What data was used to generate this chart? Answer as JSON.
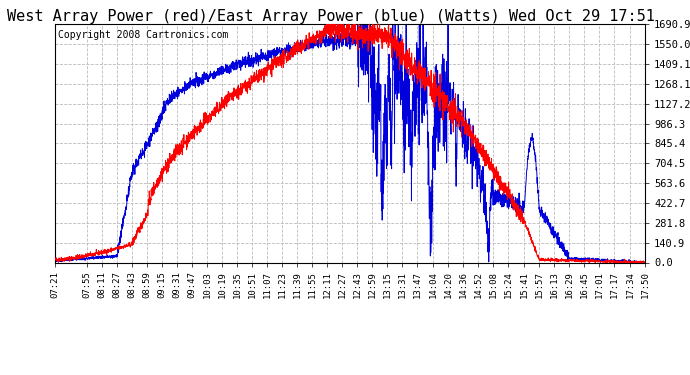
{
  "title": "West Array Power (red)/East Array Power (blue) (Watts) Wed Oct 29 17:51",
  "copyright": "Copyright 2008 Cartronics.com",
  "background_color": "#ffffff",
  "plot_bg_color": "#ffffff",
  "grid_color": "#bbbbbb",
  "grid_style": "--",
  "red_color": "#ff0000",
  "blue_color": "#0000dd",
  "yticks": [
    0.0,
    140.9,
    281.8,
    422.7,
    563.6,
    704.5,
    845.4,
    986.3,
    1127.2,
    1268.1,
    1409.1,
    1550.0,
    1690.9
  ],
  "xtick_labels": [
    "07:21",
    "07:55",
    "08:11",
    "08:27",
    "08:43",
    "08:59",
    "09:15",
    "09:31",
    "09:47",
    "10:03",
    "10:19",
    "10:35",
    "10:51",
    "11:07",
    "11:23",
    "11:39",
    "11:55",
    "12:11",
    "12:27",
    "12:43",
    "12:59",
    "13:15",
    "13:31",
    "13:47",
    "14:04",
    "14:20",
    "14:36",
    "14:52",
    "15:08",
    "15:24",
    "15:41",
    "15:57",
    "16:13",
    "16:29",
    "16:45",
    "17:01",
    "17:17",
    "17:34",
    "17:50"
  ],
  "ylim": [
    0.0,
    1690.9
  ],
  "title_fontsize": 11,
  "copyright_fontsize": 7
}
